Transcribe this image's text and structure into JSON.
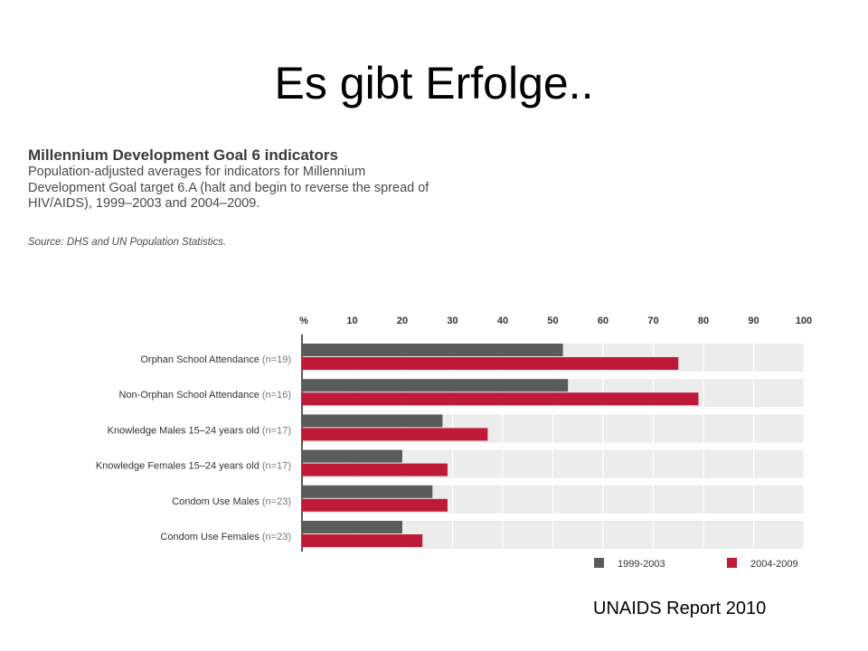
{
  "slide": {
    "title": "Es gibt Erfolge..",
    "credit": "UNAIDS Report 2010"
  },
  "figure": {
    "title": "Millennium Development Goal 6 indicators",
    "subtitle": "Population-adjusted averages for indicators for Millennium Development Goal target 6.A (halt and begin to reverse the spread of HIV/AIDS), 1999–2003 and 2004–2009.",
    "source": "Source: DHS and UN Population Statistics."
  },
  "chart_data": {
    "type": "bar",
    "orientation": "horizontal",
    "axis_unit_label": "%",
    "xlim": [
      0,
      100
    ],
    "ticks": [
      "10",
      "20",
      "30",
      "40",
      "50",
      "60",
      "70",
      "80",
      "90",
      "100"
    ],
    "tick_values": [
      10,
      20,
      30,
      40,
      50,
      60,
      70,
      80,
      90,
      100
    ],
    "categories": [
      {
        "label": "Orphan School Attendance",
        "n": "(n=19)"
      },
      {
        "label": "Non-Orphan School Attendance",
        "n": "(n=16)"
      },
      {
        "label": "Knowledge Males 15–24 years old",
        "n": "(n=17)"
      },
      {
        "label": "Knowledge Females 15–24 years old",
        "n": "(n=17)"
      },
      {
        "label": "Condom Use Males",
        "n": "(n=23)"
      },
      {
        "label": "Condom Use Females",
        "n": "(n=23)"
      }
    ],
    "series": [
      {
        "name": "1999-2003",
        "color": "#5b5b5b",
        "values": [
          52,
          53,
          28,
          20,
          26,
          20
        ]
      },
      {
        "name": "2004-2009",
        "color": "#be1a38",
        "values": [
          75,
          79,
          37,
          29,
          29,
          24
        ]
      }
    ],
    "legend_position": "bottom-right",
    "row_band_color": "#ececec"
  }
}
